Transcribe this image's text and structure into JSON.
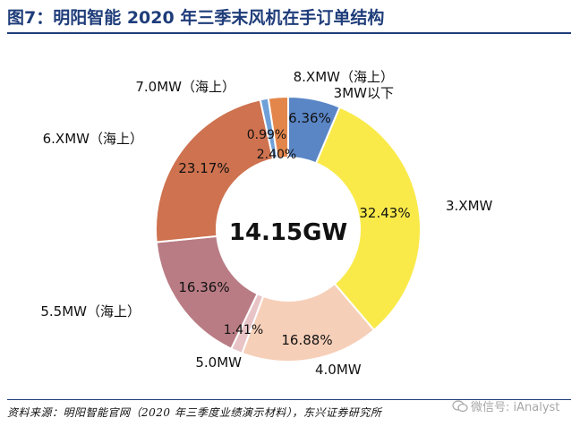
{
  "header": {
    "title": "图7：明阳智能 2020 年三季末风机在手订单结构"
  },
  "chart_data": {
    "type": "pie",
    "title": "图7：明阳智能 2020 年三季末风机在手订单结构",
    "center_total": "14.15GW",
    "slices": [
      {
        "name": "3MW以下",
        "value": 6.36,
        "label": "6.36%",
        "color": "#5a86c6"
      },
      {
        "name": "3.XMW",
        "value": 32.43,
        "label": "32.43%",
        "color": "#f9ea4a"
      },
      {
        "name": "4.0MW",
        "value": 16.88,
        "label": "16.88%",
        "color": "#f6cfb8"
      },
      {
        "name": "5.0MW",
        "value": 1.41,
        "label": "1.41%",
        "color": "#e8c4c7"
      },
      {
        "name": "5.5MW（海上）",
        "value": 16.36,
        "label": "16.36%",
        "color": "#b97c84"
      },
      {
        "name": "6.XMW（海上）",
        "value": 23.17,
        "label": "23.17%",
        "color": "#ce7250"
      },
      {
        "name": "7.0MW（海上）",
        "value": 0.99,
        "label": "0.99%",
        "color": "#6fa1d8"
      },
      {
        "name": "8.XMW（海上）",
        "value": 2.4,
        "label": "2.40%",
        "color": "#e3864c"
      }
    ]
  },
  "source": "资料来源：明阳智能官网（2020 年三季度业绩演示材料），东兴证券研究所",
  "watermark": {
    "text": "微信号: iAnalyst",
    "icon": "wechat-icon"
  }
}
